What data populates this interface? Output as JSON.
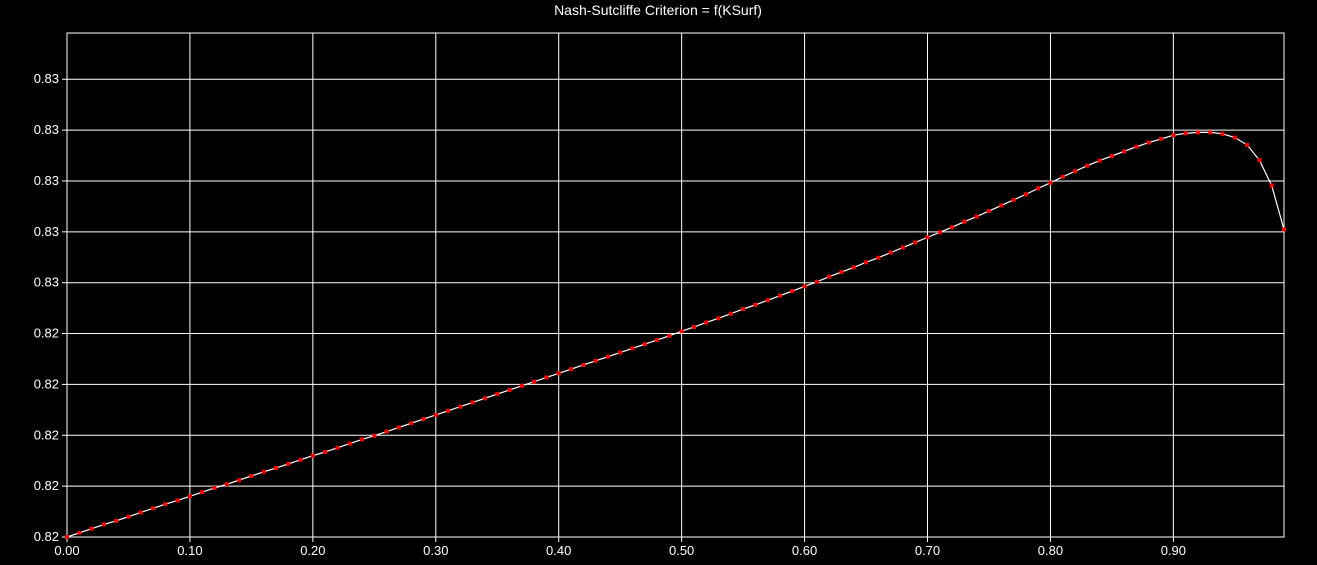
{
  "colors": {
    "background": "#000000",
    "grid": "#ffffff",
    "line": "#ffffff",
    "marker": "#ff0000",
    "text": "#ffffff"
  },
  "chart_data": {
    "type": "line",
    "title": "Nash-Sutcliffe Criterion = f(KSurf)",
    "xlabel": "",
    "ylabel": "",
    "xlim": [
      0.0,
      0.99
    ],
    "ylim": [
      0.8226,
      0.8335
    ],
    "grid": true,
    "legend": "none",
    "x_ticks": [
      {
        "value": 0.0,
        "label": "0.00"
      },
      {
        "value": 0.1,
        "label": "0.10"
      },
      {
        "value": 0.2,
        "label": "0.20"
      },
      {
        "value": 0.3,
        "label": "0.30"
      },
      {
        "value": 0.4,
        "label": "0.40"
      },
      {
        "value": 0.5,
        "label": "0.50"
      },
      {
        "value": 0.6,
        "label": "0.60"
      },
      {
        "value": 0.7,
        "label": "0.70"
      },
      {
        "value": 0.8,
        "label": "0.80"
      },
      {
        "value": 0.9,
        "label": "0.90"
      }
    ],
    "y_ticks": [
      {
        "value": 0.8226,
        "label": "0.82"
      },
      {
        "value": 0.8237,
        "label": "0.82"
      },
      {
        "value": 0.8248,
        "label": "0.82"
      },
      {
        "value": 0.8259,
        "label": "0.82"
      },
      {
        "value": 0.827,
        "label": "0.82"
      },
      {
        "value": 0.8281,
        "label": "0.83"
      },
      {
        "value": 0.8292,
        "label": "0.83"
      },
      {
        "value": 0.8303,
        "label": "0.83"
      },
      {
        "value": 0.8314,
        "label": "0.83"
      },
      {
        "value": 0.8325,
        "label": "0.83"
      }
    ],
    "series": [
      {
        "x": [
          0.0,
          0.01,
          0.02,
          0.03,
          0.04,
          0.05,
          0.06,
          0.07,
          0.08,
          0.09,
          0.1,
          0.11,
          0.12,
          0.13,
          0.14,
          0.15,
          0.16,
          0.17,
          0.18,
          0.19,
          0.2,
          0.21,
          0.22,
          0.23,
          0.24,
          0.25,
          0.26,
          0.27,
          0.28,
          0.29,
          0.3,
          0.31,
          0.32,
          0.33,
          0.34,
          0.35,
          0.36,
          0.37,
          0.38,
          0.39,
          0.4,
          0.41,
          0.42,
          0.43,
          0.44,
          0.45,
          0.46,
          0.47,
          0.48,
          0.49,
          0.5,
          0.51,
          0.52,
          0.53,
          0.54,
          0.55,
          0.56,
          0.57,
          0.58,
          0.59,
          0.6,
          0.61,
          0.62,
          0.63,
          0.64,
          0.65,
          0.66,
          0.67,
          0.68,
          0.69,
          0.7,
          0.71,
          0.72,
          0.73,
          0.74,
          0.75,
          0.76,
          0.77,
          0.78,
          0.79,
          0.8,
          0.81,
          0.82,
          0.83,
          0.84,
          0.85,
          0.86,
          0.87,
          0.88,
          0.89,
          0.9,
          0.91,
          0.92,
          0.93,
          0.94,
          0.95,
          0.96,
          0.97,
          0.98,
          0.99
        ],
        "y": [
          0.8226,
          0.82269,
          0.82278,
          0.82287,
          0.82295,
          0.82304,
          0.82313,
          0.82322,
          0.82331,
          0.82339,
          0.82348,
          0.82357,
          0.82366,
          0.82374,
          0.82383,
          0.82392,
          0.82401,
          0.82409,
          0.82418,
          0.82427,
          0.82436,
          0.82444,
          0.82453,
          0.82462,
          0.82471,
          0.82479,
          0.82488,
          0.82497,
          0.82506,
          0.82515,
          0.82524,
          0.82533,
          0.82542,
          0.82551,
          0.8256,
          0.82569,
          0.82578,
          0.82587,
          0.82596,
          0.82605,
          0.82614,
          0.82623,
          0.82632,
          0.82641,
          0.8265,
          0.82659,
          0.82668,
          0.82677,
          0.82686,
          0.82695,
          0.82705,
          0.82714,
          0.82724,
          0.82733,
          0.82743,
          0.82753,
          0.82762,
          0.82772,
          0.82782,
          0.82792,
          0.82802,
          0.82812,
          0.82823,
          0.82833,
          0.82843,
          0.82854,
          0.82864,
          0.82875,
          0.82886,
          0.82897,
          0.82908,
          0.82919,
          0.8293,
          0.82942,
          0.82953,
          0.82965,
          0.82977,
          0.82989,
          0.83001,
          0.83014,
          0.83026,
          0.83039,
          0.83051,
          0.83063,
          0.83074,
          0.83084,
          0.83094,
          0.83104,
          0.83113,
          0.83121,
          0.83129,
          0.83133,
          0.83135,
          0.83135,
          0.83132,
          0.83124,
          0.83108,
          0.83075,
          0.8302,
          0.82925
        ]
      }
    ]
  }
}
